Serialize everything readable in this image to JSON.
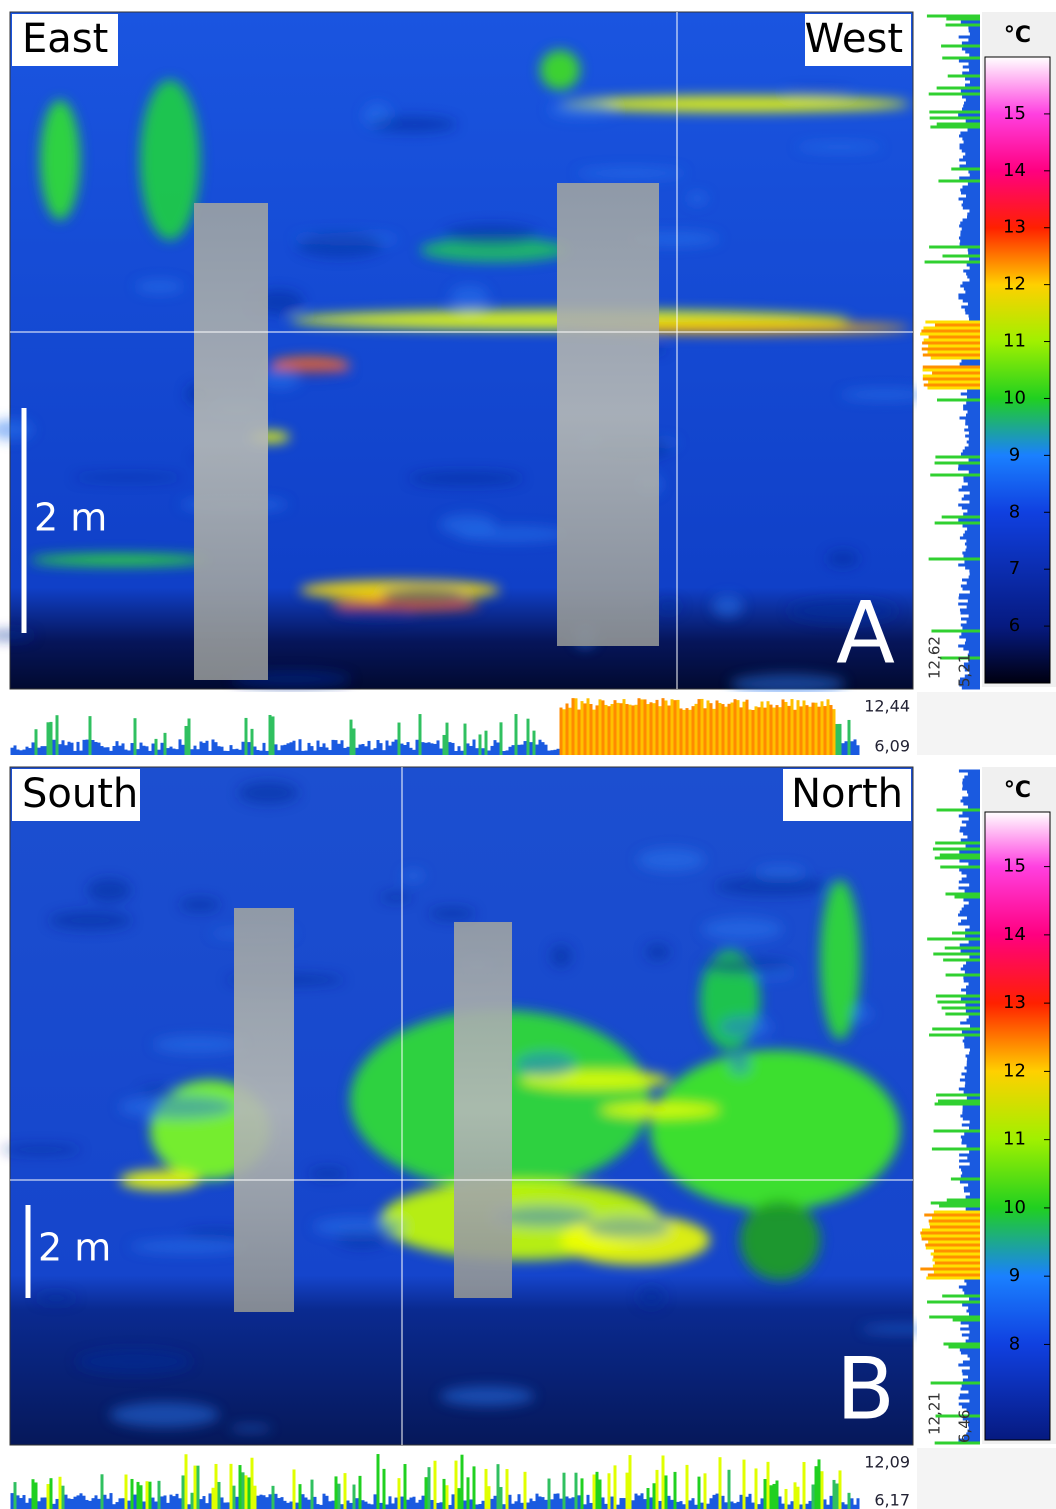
{
  "panels": [
    {
      "left_label": "East",
      "right_label": "West",
      "scale_label": "2 m",
      "panel_label": "A",
      "unit": "°C",
      "colorbar": {
        "lim": [
          5,
          16
        ],
        "ticks": [
          6,
          7,
          8,
          9,
          10,
          11,
          12,
          13,
          14,
          15
        ]
      },
      "side_profile": {
        "max": "12,62",
        "min": "5,21"
      },
      "bottom_profile": {
        "max": "12,44",
        "min": "6,09"
      }
    },
    {
      "left_label": "South",
      "right_label": "North",
      "scale_label": "2 m",
      "panel_label": "B",
      "unit": "°C",
      "colorbar": {
        "lim": [
          6.6,
          15.8
        ],
        "ticks": [
          8,
          9,
          10,
          11,
          12,
          13,
          14,
          15
        ]
      },
      "side_profile": {
        "max": "12,21",
        "min": "6,46"
      },
      "bottom_profile": {
        "max": "12,09",
        "min": "6,17"
      }
    }
  ]
}
